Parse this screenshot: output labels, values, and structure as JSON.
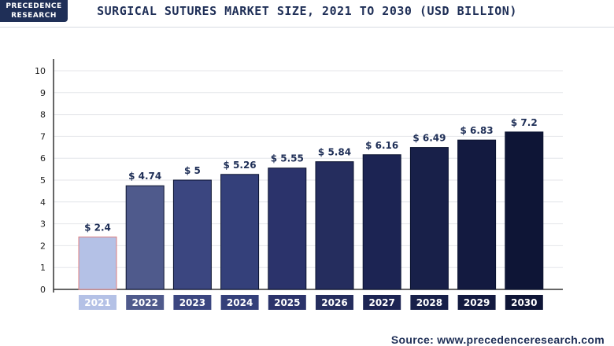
{
  "logo": {
    "line1": "PRECEDENCE",
    "line2": "RESEARCH"
  },
  "source": "Source: www.precedenceresearch.com",
  "chart_data": {
    "type": "bar",
    "title": "SURGICAL SUTURES MARKET SIZE, 2021 TO 2030 (USD BILLION)",
    "categories": [
      "2021",
      "2022",
      "2023",
      "2024",
      "2025",
      "2026",
      "2027",
      "2028",
      "2029",
      "2030"
    ],
    "values": [
      2.4,
      4.74,
      5,
      5.26,
      5.55,
      5.84,
      6.16,
      6.49,
      6.83,
      7.2
    ],
    "value_labels": [
      "$ 2.4",
      "$ 4.74",
      "$ 5",
      "$ 5.26",
      "$ 5.55",
      "$ 5.84",
      "$ 6.16",
      "$ 6.49",
      "$ 6.83",
      "$ 7.2"
    ],
    "bar_colors": [
      "#b4c1e6",
      "#4f5a8c",
      "#3b4680",
      "#34407a",
      "#2b336b",
      "#252d5e",
      "#1c2453",
      "#182049",
      "#131a40",
      "#0e1536"
    ],
    "yticks": [
      0,
      1,
      2,
      3,
      4,
      5,
      6,
      7,
      8,
      9,
      10
    ],
    "ylim": [
      0,
      10
    ],
    "xlabel": "",
    "ylabel": "",
    "grid": true,
    "legend": "none"
  }
}
